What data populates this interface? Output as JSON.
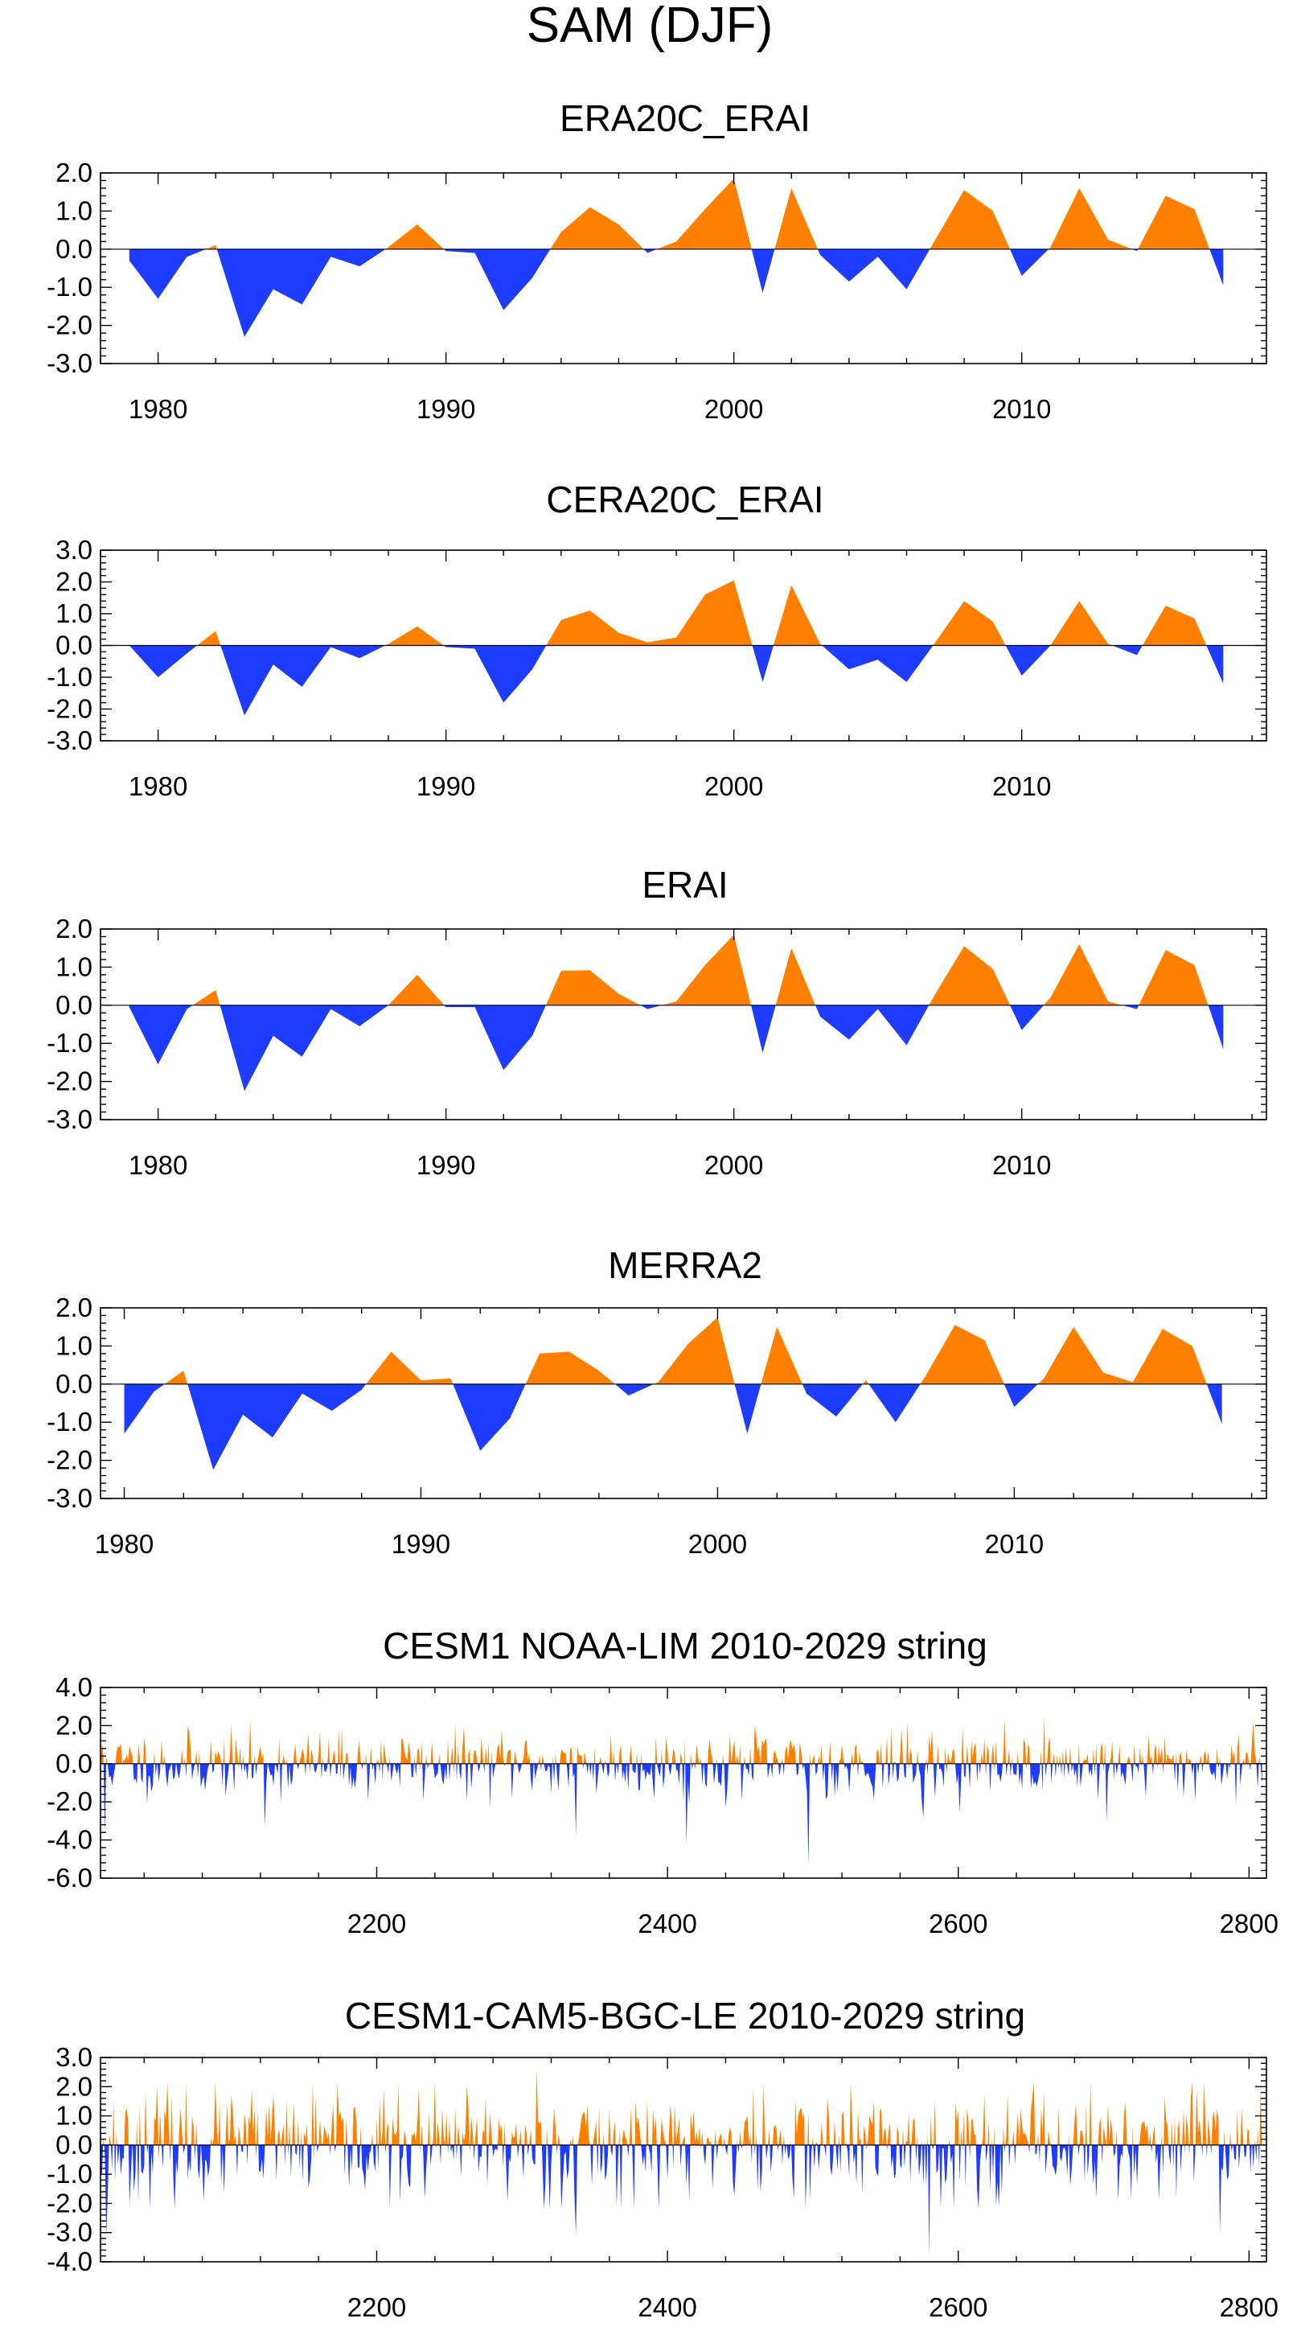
{
  "figure_title": "SAM (DJF)",
  "colors": {
    "positive": "#ff8000",
    "negative": "#1e3cff"
  },
  "chart_data": [
    {
      "type": "area",
      "title": "ERA20C_ERAI",
      "x_start": 1979,
      "values": [
        -0.3,
        -1.3,
        -0.2,
        0.1,
        -2.3,
        -1.05,
        -1.45,
        -0.2,
        -0.45,
        0.05,
        0.65,
        -0.05,
        -0.1,
        -1.6,
        -0.75,
        0.45,
        1.1,
        0.65,
        -0.1,
        0.2,
        1.05,
        1.85,
        -1.15,
        1.6,
        -0.15,
        -0.85,
        -0.2,
        -1.05,
        0.25,
        1.55,
        1.0,
        -0.7,
        0.05,
        1.6,
        0.25,
        -0.05,
        1.4,
        1.05,
        -0.95
      ],
      "ylim": [
        -3.0,
        2.0
      ],
      "yticks": [
        "2.0",
        "1.0",
        "0.0",
        "-1.0",
        "-2.0",
        "-3.0"
      ],
      "xlim": [
        1978,
        2018.5
      ],
      "xticks": [
        "1980",
        "1990",
        "2000",
        "2010"
      ]
    },
    {
      "type": "area",
      "title": "CERA20C_ERAI",
      "x_start": 1979,
      "values": [
        0.0,
        -1.0,
        -0.25,
        0.45,
        -2.2,
        -0.6,
        -1.3,
        -0.05,
        -0.4,
        0.05,
        0.6,
        -0.05,
        -0.1,
        -1.8,
        -0.75,
        0.8,
        1.1,
        0.4,
        0.1,
        0.25,
        1.6,
        2.05,
        -1.15,
        1.9,
        0.05,
        -0.75,
        -0.45,
        -1.15,
        0.1,
        1.4,
        0.75,
        -0.95,
        0.0,
        1.4,
        0.05,
        -0.3,
        1.25,
        0.85,
        -1.2
      ],
      "ylim": [
        -3.0,
        3.0
      ],
      "yticks": [
        "3.0",
        "2.0",
        "1.0",
        "0.0",
        "-1.0",
        "-2.0",
        "-3.0"
      ],
      "xlim": [
        1978,
        2018.5
      ],
      "xticks": [
        "1980",
        "1990",
        "2000",
        "2010"
      ]
    },
    {
      "type": "area",
      "title": "ERAI",
      "x_start": 1979,
      "values": [
        -0.05,
        -1.55,
        -0.1,
        0.4,
        -2.25,
        -0.8,
        -1.35,
        -0.1,
        -0.55,
        0.0,
        0.8,
        -0.05,
        -0.05,
        -1.7,
        -0.8,
        0.9,
        0.92,
        0.3,
        -0.1,
        0.1,
        1.05,
        1.85,
        -1.25,
        1.5,
        -0.3,
        -0.9,
        -0.1,
        -1.05,
        0.3,
        1.55,
        0.95,
        -0.65,
        0.2,
        1.6,
        0.1,
        -0.1,
        1.45,
        1.05,
        -1.15
      ],
      "ylim": [
        -3.0,
        2.0
      ],
      "yticks": [
        "2.0",
        "1.0",
        "0.0",
        "-1.0",
        "-2.0",
        "-3.0"
      ],
      "xlim": [
        1978,
        2018.5
      ],
      "xticks": [
        "1980",
        "1990",
        "2000",
        "2010"
      ]
    },
    {
      "type": "area",
      "title": "MERRA2",
      "x_start": 1980,
      "values": [
        -1.3,
        -0.2,
        0.35,
        -2.25,
        -0.8,
        -1.4,
        -0.25,
        -0.7,
        -0.15,
        0.85,
        0.1,
        0.15,
        -1.75,
        -0.9,
        0.8,
        0.85,
        0.35,
        -0.3,
        0.05,
        1.05,
        1.75,
        -1.3,
        1.5,
        -0.25,
        -0.85,
        0.1,
        -1.0,
        0.2,
        1.55,
        1.15,
        -0.6,
        0.15,
        1.5,
        0.3,
        0.05,
        1.45,
        1.0,
        -1.05
      ],
      "ylim": [
        -3.0,
        2.0
      ],
      "yticks": [
        "2.0",
        "1.0",
        "0.0",
        "-1.0",
        "-2.0",
        "-3.0"
      ],
      "xlim": [
        1979.2,
        2018.5
      ],
      "xticks": [
        "1980",
        "1990",
        "2000",
        "2010"
      ]
    },
    {
      "type": "area",
      "title": "CESM1 NOAA-LIM 2010-2029 string",
      "x_start": 2010,
      "n_points": 800,
      "seed": 11,
      "amplitude": 1.0,
      "ylim": [
        -6.0,
        4.0
      ],
      "yticks": [
        "4.0",
        "2.0",
        "0.0",
        "-2.0",
        "-4.0",
        "-6.0"
      ],
      "xlim": [
        2010,
        2812
      ],
      "xticks": [
        "2200",
        "2400",
        "2600",
        "2800"
      ],
      "notable_extremes": [
        {
          "x": 2013,
          "y": -3.6
        },
        {
          "x": 2123,
          "y": -3.3
        },
        {
          "x": 2337,
          "y": -3.8
        },
        {
          "x": 2413,
          "y": -4.3
        },
        {
          "x": 2497,
          "y": -5.3
        },
        {
          "x": 2576,
          "y": -2.8
        },
        {
          "x": 2603,
          "y": 2.0
        },
        {
          "x": 2702,
          "y": -3.1
        }
      ]
    },
    {
      "type": "area",
      "title": "CESM1-CAM5-BGC-LE 2010-2029 string",
      "x_start": 2010,
      "n_points": 800,
      "seed": 23,
      "amplitude": 1.1,
      "ylim": [
        -4.0,
        3.0
      ],
      "yticks": [
        "3.0",
        "2.0",
        "1.0",
        "0.0",
        "-1.0",
        "-2.0",
        "-3.0",
        "-4.0"
      ],
      "xlim": [
        2010,
        2812
      ],
      "xticks": [
        "2200",
        "2400",
        "2600",
        "2800"
      ],
      "notable_extremes": [
        {
          "x": 2014,
          "y": -3.1
        },
        {
          "x": 2310,
          "y": 2.6
        },
        {
          "x": 2337,
          "y": -3.1
        },
        {
          "x": 2580,
          "y": -3.8
        },
        {
          "x": 2780,
          "y": -3.0
        },
        {
          "x": 2808,
          "y": 2.0
        }
      ]
    }
  ]
}
